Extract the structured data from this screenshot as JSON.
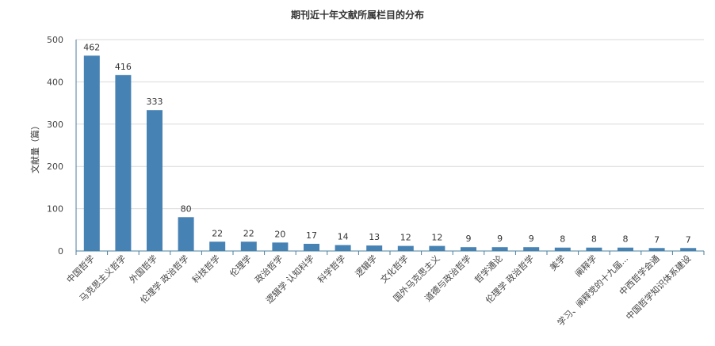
{
  "chart_data": {
    "type": "bar",
    "title": "期刊近十年文献所属栏目的分布",
    "ylabel": "文献量（篇）",
    "xlabel": "",
    "ylim": [
      0,
      500
    ],
    "yticks": [
      0,
      100,
      200,
      300,
      400,
      500
    ],
    "grid": true,
    "bar_color": "#4682b4",
    "categories": [
      "中国哲学",
      "马克思主义哲学",
      "外国哲学",
      "伦理学 政治哲学",
      "科技哲学",
      "伦理学",
      "政治哲学",
      "逻辑学 认知科学",
      "科学哲学",
      "逻辑学",
      "文化哲学",
      "国外马克思主义",
      "道德与政治哲学",
      "哲学通论",
      "伦理学 政治哲学",
      "美学",
      "阐释学",
      "学习、阐释党的十九届...",
      "中西哲学会通",
      "中国哲学知识体系建设"
    ],
    "values": [
      462,
      416,
      333,
      80,
      22,
      22,
      20,
      17,
      14,
      13,
      12,
      12,
      9,
      9,
      9,
      8,
      8,
      8,
      7,
      7
    ]
  }
}
